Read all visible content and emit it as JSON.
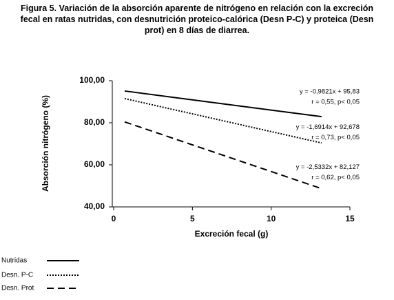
{
  "chart_data": {
    "type": "line",
    "title": "Figura 5. Variación de la absorción aparente  de nitrógeno en relación con la excreción fecal en ratas nutridas, con desnutrición proteico-calórica (Desn P-C) y proteica (Desn prot) en 8 días de diarrea.",
    "x_label": "Excreción fecal (g)",
    "y_label": "Absorción nitrógeno (%)",
    "xlim": [
      0,
      15
    ],
    "xticks": [
      0,
      5,
      10,
      15
    ],
    "ylim": [
      40,
      100
    ],
    "yticks": [
      {
        "value": 40,
        "label": "40,00"
      },
      {
        "value": 60,
        "label": "60,00"
      },
      {
        "value": 80,
        "label": "80,00"
      },
      {
        "value": 100,
        "label": "100,00"
      }
    ],
    "series": [
      {
        "name": "Nutridas",
        "color": "#000000",
        "style": "solid",
        "x": [
          0.7,
          13.2
        ],
        "values": [
          95.1,
          82.9
        ],
        "equation": "y = -0,9821x + 95,83",
        "stats": "r = 0,55, p< 0,05"
      },
      {
        "name": "Desn. P-C",
        "color": "#000000",
        "style": "dotted",
        "x": [
          0.7,
          13.2
        ],
        "values": [
          91.5,
          70.4
        ],
        "equation": "y = -1,6914x + 92,678",
        "stats": "r = 0,73, p< 0,05"
      },
      {
        "name": "Desn. Prot",
        "color": "#000000",
        "style": "dashed",
        "x": [
          0.7,
          13.2
        ],
        "values": [
          80.4,
          48.7
        ],
        "equation": "y = -2,5332x + 82,127",
        "stats": "r = 0,62, p< 0,05"
      }
    ]
  }
}
